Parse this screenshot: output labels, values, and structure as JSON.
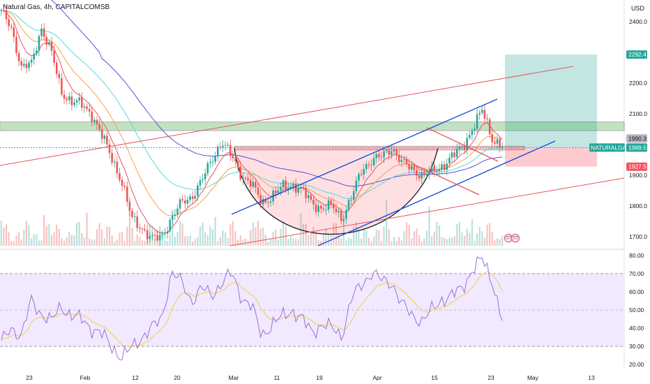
{
  "header": {
    "title": "Natural Gas, 4h, CAPITALCOMSB",
    "currency": "USD"
  },
  "price_axis": {
    "ticks": [
      "2400.0",
      "2200.0",
      "2100.0",
      "1900.0",
      "1800.0",
      "1700.0"
    ],
    "tick_values": [
      2400,
      2200,
      2100,
      1900,
      1800,
      1700
    ]
  },
  "badges": {
    "target": "2292.4",
    "prev_close": "1990.3",
    "symbol": "NATURALGAS",
    "last": "1989.5",
    "stop": "1927.5"
  },
  "rsi_axis": {
    "ticks": [
      "80.00",
      "70.00",
      "60.00",
      "50.00",
      "40.00",
      "30.00",
      "20.00"
    ],
    "tick_values": [
      80,
      70,
      60,
      50,
      40,
      30,
      20
    ]
  },
  "time_axis": {
    "labels": [
      "23",
      "Feb",
      "12",
      "20",
      "Mar",
      "11",
      "19",
      "Apr",
      "15",
      "23",
      "May",
      "13"
    ]
  },
  "chart_data": [
    {
      "type": "line",
      "panel": "price",
      "y_scale": "linear",
      "ylim": [
        1670,
        2470
      ],
      "x_labels": [
        "23",
        "Feb",
        "12",
        "20",
        "Mar",
        "11",
        "19",
        "Apr",
        "15",
        "23",
        "May",
        "13"
      ],
      "series": [
        {
          "values": [
            2430,
            2380,
            2250,
            2260,
            2380,
            2300,
            2170,
            2140,
            2130,
            2100,
            2030,
            1960,
            1880,
            1760,
            1730,
            1690,
            1700,
            1760,
            1810,
            1830,
            1880,
            1950,
            2010,
            1960,
            1900,
            1870,
            1810,
            1830,
            1860,
            1870,
            1850,
            1810,
            1790,
            1800,
            1760,
            1830,
            1920,
            1950,
            1960,
            1990,
            1940,
            1920,
            1900,
            1910,
            1930,
            1960,
            1990,
            2050,
            2110,
            2020,
            1990
          ]
        }
      ],
      "annotations": {
        "resistance_zone": [
          2045,
          2073
        ],
        "neckline": 1988,
        "target": 2292.4,
        "last": 1989.5,
        "stop": 1927.5,
        "cup_low": 1705
      }
    },
    {
      "type": "line",
      "panel": "rsi",
      "ylim": [
        17,
        83
      ],
      "levels": [
        70,
        50,
        30
      ],
      "series": [
        {
          "values": [
            32,
            40,
            36,
            55,
            48,
            44,
            52,
            47,
            45,
            40,
            37,
            30,
            24,
            29,
            35,
            40,
            45,
            71,
            65,
            55,
            62,
            58,
            65,
            70,
            57,
            52,
            36,
            42,
            46,
            50,
            45,
            38,
            42,
            40,
            36,
            57,
            64,
            71,
            66,
            65,
            53,
            47,
            44,
            50,
            56,
            58,
            62,
            72,
            78,
            66,
            44
          ]
        }
      ]
    }
  ]
}
